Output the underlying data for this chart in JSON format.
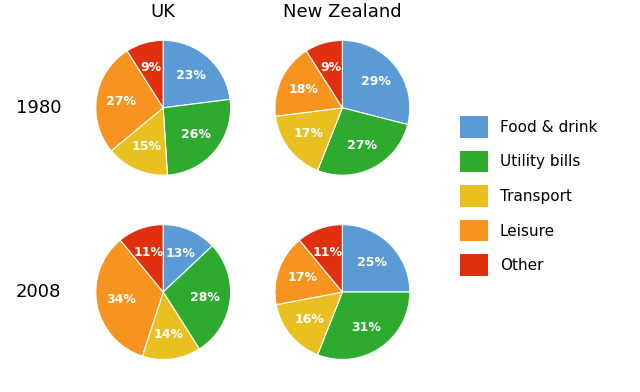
{
  "title_uk": "UK",
  "title_nz": "New Zealand",
  "label_1980": "1980",
  "label_2008": "2008",
  "categories": [
    "Food & drink",
    "Utility bills",
    "Transport",
    "Leisure",
    "Other"
  ],
  "colors": [
    "#5b9bd5",
    "#2eab2e",
    "#e8c020",
    "#f79420",
    "#e03010"
  ],
  "uk_1980": [
    23,
    26,
    15,
    27,
    9
  ],
  "nz_1980": [
    29,
    27,
    17,
    18,
    9
  ],
  "uk_2008": [
    13,
    28,
    14,
    34,
    11
  ],
  "nz_2008": [
    25,
    31,
    16,
    17,
    11
  ],
  "text_fontsize": 9.0,
  "title_fontsize": 13,
  "row_label_fontsize": 13,
  "legend_fontsize": 11
}
